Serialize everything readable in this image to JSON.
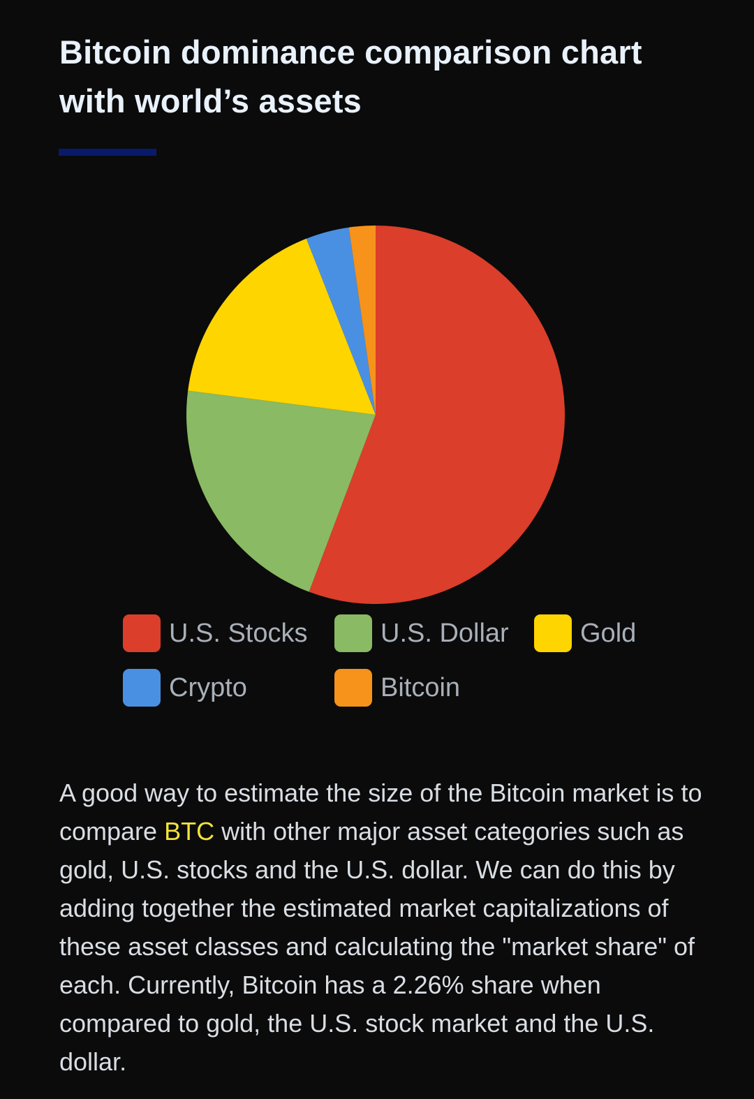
{
  "article": {
    "title_line1": "Bitcoin dominance comparison chart",
    "title_line2": "with world’s assets",
    "paragraph_part1": "A good way to estimate the size of the Bitcoin market is to compare ",
    "paragraph_highlight": "BTC",
    "paragraph_part2": " with other major asset categories such as gold, U.S. stocks and the U.S. dollar. We can do this by adding together the estimated market capitalizations of these asset classes and calculating the \"market share\" of each. Currently, Bitcoin has a 2.26% share when compared to gold, the U.S. stock market and the U.S. dollar."
  },
  "colors": {
    "background": "#0b0b0b",
    "accent_underline": "#0a1a6b",
    "highlight": "#f2e33c"
  },
  "chart_data": {
    "type": "pie",
    "title": "",
    "legend_position": "bottom",
    "start_angle_deg": 0,
    "direction": "clockwise",
    "slices": [
      {
        "name": "U.S. Stocks",
        "value": 55.7,
        "color": "#db3e2a"
      },
      {
        "name": "U.S. Dollar",
        "value": 21.3,
        "color": "#8aba63"
      },
      {
        "name": "Gold",
        "value": 17.0,
        "color": "#ffd500"
      },
      {
        "name": "Crypto",
        "value": 3.7,
        "color": "#4a90e2"
      },
      {
        "name": "Bitcoin",
        "value": 2.26,
        "color": "#f7931a"
      }
    ]
  }
}
